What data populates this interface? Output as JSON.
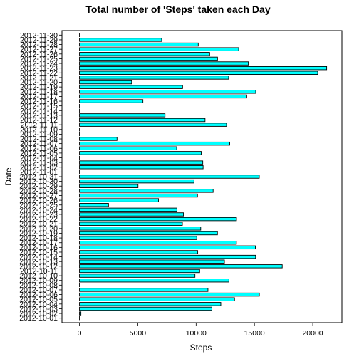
{
  "chart_data": {
    "type": "bar",
    "orientation": "horizontal",
    "title": "Total number of 'Steps' taken each Day",
    "xlabel": "Steps",
    "ylabel": "Date",
    "xlim": [
      -1500,
      22500
    ],
    "xticks": [
      0,
      5000,
      10000,
      15000,
      20000
    ],
    "grid": false,
    "bar_color": "#00FFFF",
    "bar_edge_color": "#000000",
    "categories": [
      "2012-10-01",
      "2012-10-02",
      "2012-10-03",
      "2012-10-04",
      "2012-10-05",
      "2012-10-06",
      "2012-10-07",
      "2012-10-08",
      "2012-10-09",
      "2012-10-10",
      "2012-10-11",
      "2012-10-12",
      "2012-10-13",
      "2012-10-14",
      "2012-10-15",
      "2012-10-16",
      "2012-10-17",
      "2012-10-18",
      "2012-10-19",
      "2012-10-20",
      "2012-10-21",
      "2012-10-22",
      "2012-10-23",
      "2012-10-24",
      "2012-10-25",
      "2012-10-26",
      "2012-10-27",
      "2012-10-28",
      "2012-10-29",
      "2012-10-30",
      "2012-10-31",
      "2012-11-01",
      "2012-11-02",
      "2012-11-03",
      "2012-11-04",
      "2012-11-05",
      "2012-11-06",
      "2012-11-07",
      "2012-11-08",
      "2012-11-09",
      "2012-11-10",
      "2012-11-11",
      "2012-11-12",
      "2012-11-13",
      "2012-11-14",
      "2012-11-15",
      "2012-11-16",
      "2012-11-17",
      "2012-11-18",
      "2012-11-19",
      "2012-11-20",
      "2012-11-21",
      "2012-11-22",
      "2012-11-23",
      "2012-11-24",
      "2012-11-25",
      "2012-11-26",
      "2012-11-27",
      "2012-11-28",
      "2012-11-29",
      "2012-11-30"
    ],
    "values": [
      0,
      126,
      11352,
      12116,
      13294,
      15420,
      11015,
      0,
      12811,
      9900,
      10304,
      17382,
      12426,
      15098,
      10139,
      15084,
      13452,
      10056,
      11829,
      10395,
      8821,
      13460,
      8918,
      8355,
      2492,
      6778,
      10119,
      11458,
      5018,
      9819,
      15414,
      0,
      10600,
      10571,
      0,
      10439,
      8334,
      12883,
      3219,
      0,
      0,
      12608,
      10765,
      7336,
      0,
      41,
      5441,
      14339,
      15110,
      8841,
      4472,
      12787,
      20427,
      21194,
      14478,
      11834,
      11162,
      13646,
      10183,
      7047,
      0
    ]
  }
}
